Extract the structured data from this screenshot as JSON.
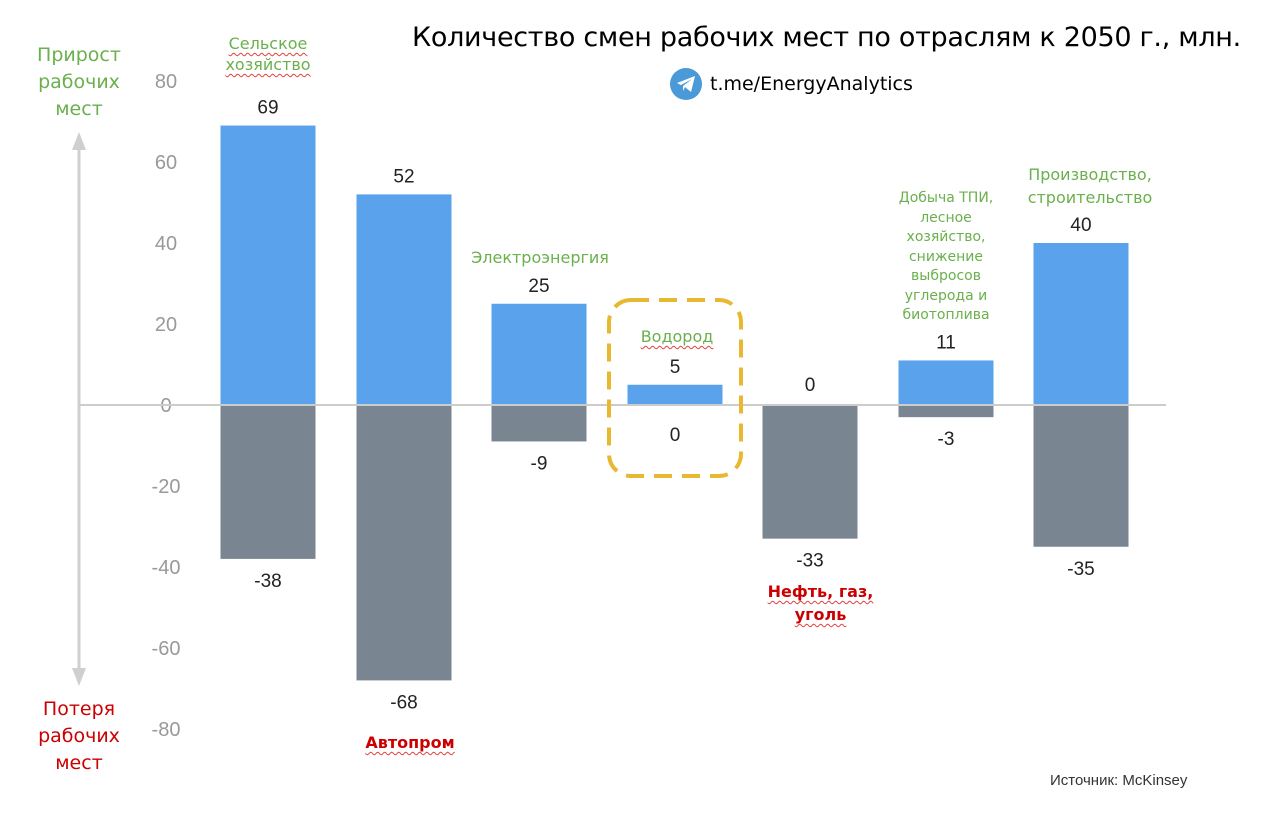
{
  "title": "Количество смен рабочих мест по отраслям к 2050 г., млн.",
  "channel": "t.me/EnergyAnalytics",
  "source": "Источник: McKinsey",
  "axis_top_label": "Прирост рабочих мест",
  "axis_bottom_label": "Потеря рабочих мест",
  "colors": {
    "gain_bar": "#5aa3ec",
    "loss_bar": "#7a8592",
    "gain_label": "#6ab04c",
    "loss_label": "#cc0000",
    "highlight": "#e8b930"
  },
  "chart_data": {
    "type": "bar",
    "ylim": [
      -80,
      80
    ],
    "yticks": [
      80,
      60,
      40,
      20,
      0,
      -20,
      -40,
      -60,
      -80
    ],
    "categories": [
      {
        "name": "Сельское хозяйство",
        "group": "gain"
      },
      {
        "name": "Автопром",
        "group": "loss"
      },
      {
        "name": "Электроэнергия",
        "group": "gain"
      },
      {
        "name": "Водород",
        "group": "gain",
        "highlight": true
      },
      {
        "name": "Нефть, газ, уголь",
        "group": "loss"
      },
      {
        "name": "Добыча ТПИ, лесное хозяйство, снижение выбросов углерода и биотоплива",
        "group": "gain"
      },
      {
        "name": "Производство, строительство",
        "group": "gain"
      }
    ],
    "series": [
      {
        "values": [
          69,
          52,
          25,
          5,
          0,
          11,
          40
        ]
      },
      {
        "values": [
          -38,
          -68,
          -9,
          0,
          -33,
          -3,
          -35
        ]
      }
    ],
    "gain_labels": [
      "69",
      "52",
      "25",
      "5",
      "0",
      "11",
      "40"
    ],
    "loss_labels": [
      "-38",
      "-68",
      "-9",
      "0",
      "-33",
      "-3",
      "-35"
    ]
  }
}
